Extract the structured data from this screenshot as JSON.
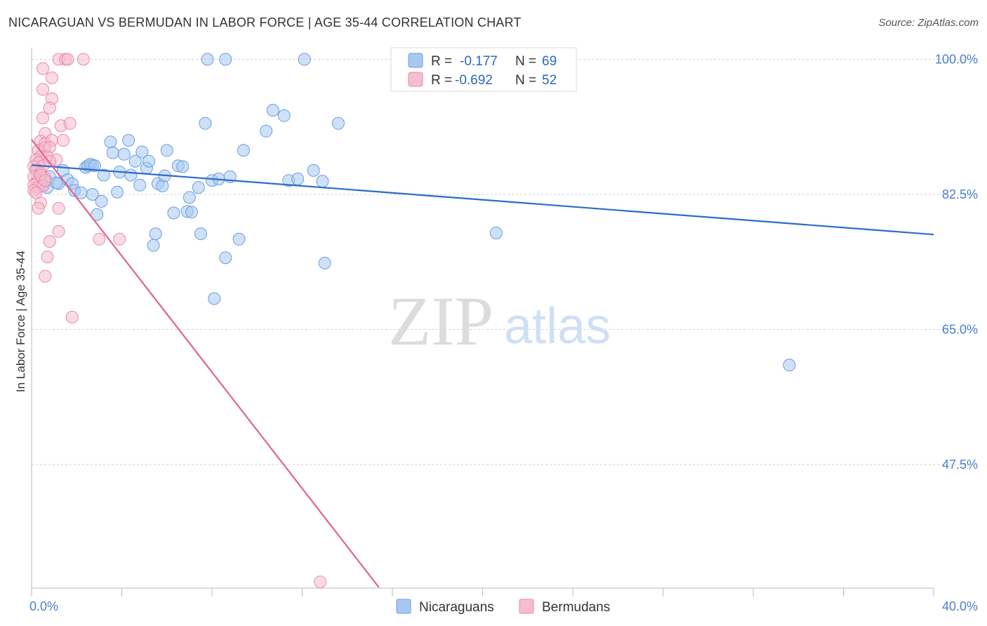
{
  "title": "NICARAGUAN VS BERMUDAN IN LABOR FORCE | AGE 35-44 CORRELATION CHART",
  "source": "Source: ZipAtlas.com",
  "watermark": {
    "zip": "ZIP",
    "atlas": "atlas"
  },
  "colors": {
    "nicaraguans_fill": "#a8c8f0",
    "nicaraguans_stroke": "#6b9ee0",
    "nicaraguans_line": "#2b6cc9",
    "bermudans_fill": "#f6bccf",
    "bermudans_stroke": "#ea8aaa",
    "bermudans_line": "#e0648e",
    "tick_text": "#4a7fd0",
    "grid": "#d0d0d0"
  },
  "legend": {
    "r_label": "R =",
    "n_label": "N =",
    "rows": [
      {
        "series": "Nicaraguans",
        "r": "-0.177",
        "n": "69"
      },
      {
        "series": "Bermudans",
        "r": "-0.692",
        "n": "52"
      }
    ]
  },
  "chart_data": {
    "type": "scatter",
    "title": "NICARAGUAN VS BERMUDAN IN LABOR FORCE | AGE 35-44 CORRELATION CHART",
    "xlabel": "",
    "ylabel": "In Labor Force | Age 35-44",
    "xlim": [
      0,
      40
    ],
    "ylim": [
      31.5,
      101.5
    ],
    "x_tick_labels": [
      {
        "value": 0,
        "label": "0.0%"
      },
      {
        "value": 40,
        "label": "40.0%"
      }
    ],
    "y_tick_labels": [
      {
        "value": 100,
        "label": "100.0%"
      },
      {
        "value": 82.5,
        "label": "82.5%"
      },
      {
        "value": 65,
        "label": "65.0%"
      },
      {
        "value": 47.5,
        "label": "47.5%"
      }
    ],
    "y_gridlines": [
      100,
      82.5,
      65,
      47.5
    ],
    "grid": true,
    "legend_position": "top-center",
    "series": [
      {
        "name": "Nicaraguans",
        "trend": {
          "x": [
            0,
            40
          ],
          "y": [
            86.3,
            77.3
          ]
        },
        "points": [
          [
            7.8,
            100
          ],
          [
            8.6,
            100
          ],
          [
            12.1,
            100
          ],
          [
            1.4,
            85.6
          ],
          [
            1.6,
            84.4
          ],
          [
            1.2,
            83.9
          ],
          [
            0.6,
            84.1
          ],
          [
            0.5,
            83.6
          ],
          [
            0.7,
            83.4
          ],
          [
            1.8,
            83.9
          ],
          [
            1.9,
            83.0
          ],
          [
            2.2,
            82.7
          ],
          [
            2.4,
            86.0
          ],
          [
            2.5,
            86.2
          ],
          [
            2.7,
            86.3
          ],
          [
            2.6,
            86.4
          ],
          [
            2.8,
            86.2
          ],
          [
            3.2,
            85.0
          ],
          [
            2.7,
            82.5
          ],
          [
            3.1,
            81.6
          ],
          [
            2.9,
            79.9
          ],
          [
            3.5,
            89.3
          ],
          [
            3.6,
            87.9
          ],
          [
            3.8,
            82.8
          ],
          [
            3.9,
            85.4
          ],
          [
            4.1,
            87.7
          ],
          [
            4.3,
            89.5
          ],
          [
            4.4,
            85.0
          ],
          [
            4.6,
            86.8
          ],
          [
            4.8,
            83.7
          ],
          [
            4.9,
            88.0
          ],
          [
            5.1,
            85.9
          ],
          [
            5.2,
            86.8
          ],
          [
            5.6,
            83.9
          ],
          [
            5.8,
            83.6
          ],
          [
            5.9,
            84.9
          ],
          [
            6.0,
            88.2
          ],
          [
            6.5,
            86.2
          ],
          [
            6.7,
            86.1
          ],
          [
            5.5,
            77.4
          ],
          [
            5.4,
            75.9
          ],
          [
            6.3,
            80.1
          ],
          [
            6.9,
            80.3
          ],
          [
            7.1,
            80.2
          ],
          [
            7.0,
            82.1
          ],
          [
            7.4,
            83.4
          ],
          [
            7.5,
            77.4
          ],
          [
            7.7,
            91.7
          ],
          [
            8.0,
            84.3
          ],
          [
            8.3,
            84.5
          ],
          [
            8.8,
            84.8
          ],
          [
            8.6,
            74.3
          ],
          [
            8.1,
            69.0
          ],
          [
            9.2,
            76.7
          ],
          [
            9.4,
            88.2
          ],
          [
            10.4,
            90.7
          ],
          [
            10.7,
            93.4
          ],
          [
            11.2,
            92.7
          ],
          [
            11.4,
            84.3
          ],
          [
            11.8,
            84.5
          ],
          [
            12.5,
            85.6
          ],
          [
            12.9,
            84.2
          ],
          [
            13.0,
            73.6
          ],
          [
            13.6,
            91.7
          ],
          [
            20.6,
            77.5
          ],
          [
            33.6,
            60.4
          ],
          [
            0.2,
            85.8
          ],
          [
            0.8,
            84.8
          ],
          [
            1.1,
            84.0
          ]
        ]
      },
      {
        "name": "Bermudans",
        "trend": {
          "x": [
            0,
            15.4
          ],
          "y": [
            89.6,
            31.6
          ]
        },
        "points": [
          [
            1.2,
            100
          ],
          [
            1.5,
            100
          ],
          [
            1.6,
            100
          ],
          [
            2.3,
            100
          ],
          [
            0.5,
            98.8
          ],
          [
            0.9,
            97.6
          ],
          [
            0.5,
            96.1
          ],
          [
            0.9,
            94.9
          ],
          [
            0.8,
            93.7
          ],
          [
            0.5,
            92.4
          ],
          [
            1.3,
            91.4
          ],
          [
            1.7,
            91.7
          ],
          [
            0.6,
            90.4
          ],
          [
            0.4,
            89.4
          ],
          [
            0.6,
            89.1
          ],
          [
            0.9,
            89.5
          ],
          [
            1.4,
            89.5
          ],
          [
            0.3,
            88.2
          ],
          [
            0.6,
            88.6
          ],
          [
            0.8,
            88.6
          ],
          [
            0.4,
            87.4
          ],
          [
            0.7,
            87.4
          ],
          [
            1.1,
            87.0
          ],
          [
            0.2,
            87.0
          ],
          [
            0.3,
            86.6
          ],
          [
            0.5,
            86.2
          ],
          [
            0.1,
            86.1
          ],
          [
            0.2,
            85.6
          ],
          [
            0.4,
            85.3
          ],
          [
            0.1,
            84.8
          ],
          [
            0.3,
            84.3
          ],
          [
            0.6,
            84.6
          ],
          [
            0.2,
            84.0
          ],
          [
            0.1,
            83.7
          ],
          [
            0.3,
            83.4
          ],
          [
            0.5,
            83.6
          ],
          [
            0.1,
            83.0
          ],
          [
            0.2,
            82.7
          ],
          [
            0.4,
            81.4
          ],
          [
            0.3,
            80.7
          ],
          [
            1.2,
            80.7
          ],
          [
            1.2,
            77.7
          ],
          [
            0.8,
            76.4
          ],
          [
            3.0,
            76.7
          ],
          [
            3.9,
            76.7
          ],
          [
            0.7,
            74.4
          ],
          [
            0.6,
            71.9
          ],
          [
            1.8,
            66.6
          ],
          [
            12.8,
            32.3
          ],
          [
            0.4,
            85.0
          ],
          [
            0.8,
            86.8
          ],
          [
            0.6,
            84.3
          ]
        ]
      }
    ]
  },
  "bottom_legend": [
    {
      "series": "Nicaraguans"
    },
    {
      "series": "Bermudans"
    }
  ]
}
